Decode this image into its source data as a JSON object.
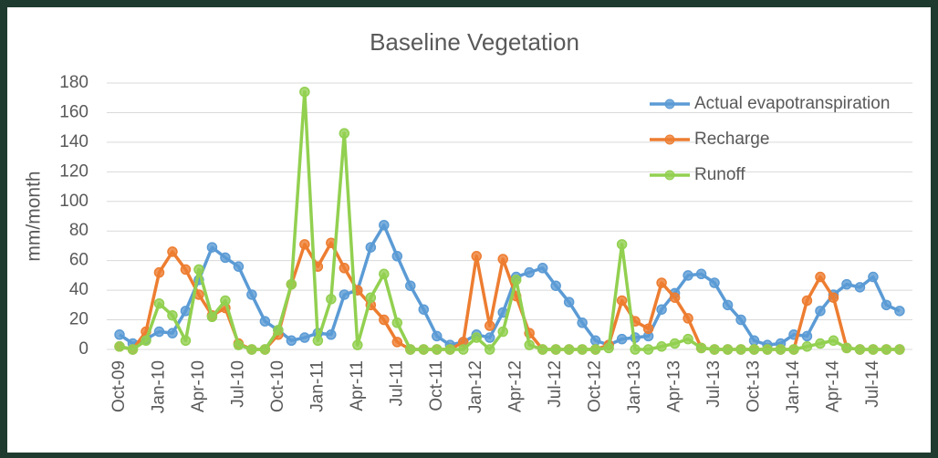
{
  "chart_data": {
    "type": "line",
    "title": "Baseline Vegetation",
    "y_label": "mm/month",
    "categories": [
      "Oct-09",
      null,
      null,
      "Jan-10",
      null,
      null,
      "Apr-10",
      null,
      null,
      "Jul-10",
      null,
      null,
      "Oct-10",
      null,
      null,
      "Jan-11",
      null,
      null,
      "Apr-11",
      null,
      null,
      "Jul-11",
      null,
      null,
      "Oct-11",
      null,
      null,
      "Jan-12",
      null,
      null,
      "Apr-12",
      null,
      null,
      "Jul-12",
      null,
      null,
      "Oct-12",
      null,
      null,
      "Jan-13",
      null,
      null,
      "Apr-13",
      null,
      null,
      "Jul-13",
      null,
      null,
      "Oct-13",
      null,
      null,
      "Jan-14",
      null,
      null,
      "Apr-14",
      null,
      null,
      "Jul-14",
      null,
      null
    ],
    "series": [
      {
        "name": "Actual evapotranspiration",
        "color": "#5b9bd5",
        "values": [
          10,
          4,
          7,
          12,
          11,
          26,
          47,
          69,
          62,
          56,
          37,
          19,
          13,
          6,
          8,
          11,
          10,
          37,
          40,
          69,
          84,
          63,
          43,
          27,
          9,
          3,
          5,
          10,
          8,
          25,
          49,
          52,
          55,
          43,
          32,
          18,
          6,
          3,
          7,
          8,
          9,
          27,
          38,
          50,
          51,
          45,
          30,
          20,
          6,
          3,
          4,
          10,
          9,
          26,
          37,
          44,
          42,
          49,
          30,
          26
        ]
      },
      {
        "name": "Recharge",
        "color": "#ed7d31",
        "values": [
          2,
          0,
          12,
          52,
          66,
          54,
          37,
          23,
          28,
          4,
          0,
          0,
          10,
          44,
          71,
          56,
          72,
          55,
          40,
          30,
          20,
          5,
          0,
          0,
          0,
          0,
          5,
          63,
          16,
          61,
          36,
          11,
          0,
          0,
          0,
          0,
          0,
          3,
          33,
          19,
          14,
          45,
          35,
          21,
          1,
          0,
          0,
          0,
          0,
          0,
          0,
          0,
          33,
          49,
          35,
          1,
          0,
          0,
          0,
          0
        ]
      },
      {
        "name": "Runoff",
        "color": "#92d050",
        "values": [
          2,
          0,
          6,
          31,
          23,
          6,
          54,
          22,
          33,
          3,
          0,
          0,
          13,
          44,
          174,
          6,
          34,
          146,
          3,
          35,
          51,
          18,
          0,
          0,
          0,
          0,
          0,
          8,
          0,
          12,
          47,
          3,
          0,
          0,
          0,
          0,
          0,
          1,
          71,
          0,
          0,
          2,
          4,
          7,
          1,
          0,
          0,
          0,
          0,
          0,
          0,
          0,
          2,
          4,
          6,
          1,
          0,
          0,
          0,
          0
        ]
      }
    ],
    "ylim": [
      0,
      180
    ],
    "yticks": [
      0,
      20,
      40,
      60,
      80,
      100,
      120,
      140,
      160,
      180
    ],
    "grid": true,
    "legend": "top-right"
  }
}
